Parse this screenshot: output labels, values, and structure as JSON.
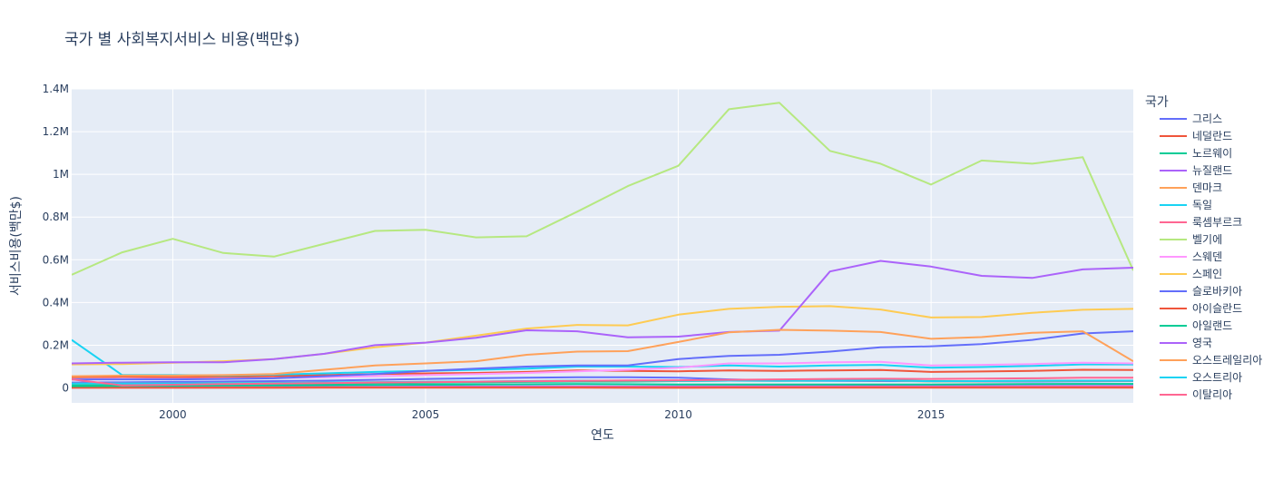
{
  "chart_data": {
    "type": "line",
    "title": "국가 별 사회복지서비스 비용(백만$)",
    "xlabel": "연도",
    "ylabel": "서비스비용(백만$)",
    "legend_title": "국가",
    "legend_position": "right",
    "xlim": [
      1998,
      2019
    ],
    "ylim": [
      -70000,
      1400000
    ],
    "x_ticks": [
      2000,
      2005,
      2010,
      2015
    ],
    "x_tick_labels": [
      "2000",
      "2005",
      "2010",
      "2015"
    ],
    "y_ticks": [
      0,
      200000,
      400000,
      600000,
      800000,
      1000000,
      1200000,
      1400000
    ],
    "y_tick_labels": [
      "0",
      "0.2M",
      "0.4M",
      "0.6M",
      "0.8M",
      "1M",
      "1.2M",
      "1.4M"
    ],
    "grid": true,
    "x": [
      1998,
      1999,
      2000,
      2001,
      2002,
      2003,
      2004,
      2005,
      2006,
      2007,
      2008,
      2009,
      2010,
      2011,
      2012,
      2013,
      2014,
      2015,
      2016,
      2017,
      2018,
      2019
    ],
    "series": [
      {
        "name": "그리스",
        "color": "#636efa",
        "values": [
          25000,
          26000,
          28000,
          30000,
          32000,
          34000,
          38000,
          42000,
          45000,
          48000,
          50000,
          50000,
          48000,
          40000,
          35000,
          33000,
          32000,
          31000,
          30000,
          30000,
          31000,
          32000
        ]
      },
      {
        "name": "네덜란드",
        "color": "#EF553B",
        "values": [
          50000,
          52000,
          50000,
          52000,
          55000,
          60000,
          65000,
          68000,
          70000,
          75000,
          82000,
          80000,
          78000,
          82000,
          80000,
          82000,
          84000,
          75000,
          77000,
          80000,
          85000,
          84000
        ]
      },
      {
        "name": "노르웨이",
        "color": "#00cc96",
        "values": [
          15000,
          16000,
          16000,
          17000,
          18000,
          20000,
          22000,
          24000,
          26000,
          28000,
          30000,
          30000,
          32000,
          34000,
          35000,
          36000,
          36000,
          32000,
          32000,
          33000,
          34000,
          34000
        ]
      },
      {
        "name": "뉴질랜드",
        "color": "#ab63fa",
        "values": [
          3000,
          3500,
          3800,
          4000,
          4500,
          5000,
          5500,
          6000,
          6500,
          7000,
          7000,
          6500,
          7000,
          7500,
          8000,
          8200,
          8500,
          8000,
          8000,
          8500,
          9000,
          9000
        ]
      },
      {
        "name": "덴마크",
        "color": "#FFA15A",
        "values": [
          20000,
          21000,
          21000,
          22000,
          23000,
          25000,
          27000,
          29000,
          30000,
          32000,
          34000,
          33000,
          33000,
          34000,
          33000,
          34000,
          35000,
          30000,
          31000,
          32000,
          33000,
          33000
        ]
      },
      {
        "name": "독일",
        "color": "#19d3f3",
        "values": [
          225000,
          60000,
          60000,
          58000,
          62000,
          68000,
          75000,
          80000,
          85000,
          90000,
          100000,
          100000,
          98000,
          105000,
          100000,
          105000,
          108000,
          95000,
          98000,
          103000,
          110000,
          110000
        ]
      },
      {
        "name": "룩셈부르크",
        "color": "#FF6692",
        "values": [
          2000,
          2200,
          2400,
          2600,
          2800,
          3000,
          3200,
          3500,
          3800,
          4000,
          4200,
          4300,
          4400,
          4600,
          4700,
          4800,
          5000,
          4800,
          4900,
          5100,
          5300,
          5400
        ]
      },
      {
        "name": "벨기에",
        "color": "#B6E880",
        "values": [
          530000,
          635000,
          698000,
          632000,
          615000,
          675000,
          735000,
          740000,
          705000,
          710000,
          825000,
          945000,
          1040000,
          1305000,
          1335000,
          1110000,
          1050000,
          952000,
          1065000,
          1050000,
          1080000,
          550000
        ]
      },
      {
        "name": "스웨덴",
        "color": "#FF97FF",
        "values": [
          40000,
          42000,
          42000,
          44000,
          46000,
          50000,
          55000,
          60000,
          65000,
          70000,
          78000,
          85000,
          95000,
          115000,
          115000,
          120000,
          122000,
          105000,
          108000,
          112000,
          118000,
          115000
        ]
      },
      {
        "name": "스페인",
        "color": "#FECB52",
        "values": [
          110000,
          112000,
          118000,
          125000,
          135000,
          160000,
          190000,
          212000,
          245000,
          278000,
          295000,
          293000,
          343000,
          370000,
          380000,
          383000,
          367000,
          330000,
          332000,
          352000,
          366000,
          370000
        ]
      },
      {
        "name": "슬로바키아",
        "color": "#636efa",
        "values": [
          40000,
          40000,
          40000,
          42000,
          45000,
          55000,
          65000,
          80000,
          90000,
          100000,
          105000,
          105000,
          135000,
          150000,
          155000,
          170000,
          190000,
          195000,
          205000,
          225000,
          255000,
          265000
        ]
      },
      {
        "name": "아이슬란드",
        "color": "#EF553B",
        "values": [
          500,
          550,
          600,
          650,
          700,
          750,
          800,
          850,
          900,
          950,
          900,
          700,
          700,
          750,
          800,
          850,
          900,
          850,
          900,
          950,
          1000,
          1000
        ]
      },
      {
        "name": "아일랜드",
        "color": "#00cc96",
        "values": [
          8000,
          9000,
          10000,
          11000,
          12000,
          13000,
          14000,
          15000,
          16000,
          17000,
          18000,
          17000,
          16000,
          16000,
          16000,
          16000,
          16000,
          16000,
          17000,
          18000,
          19000,
          19000
        ]
      },
      {
        "name": "영국",
        "color": "#ab63fa",
        "values": [
          115000,
          118000,
          120000,
          120000,
          135000,
          160000,
          200000,
          212000,
          235000,
          270000,
          265000,
          237000,
          240000,
          262000,
          268000,
          545000,
          595000,
          568000,
          525000,
          515000,
          555000,
          563000
        ]
      },
      {
        "name": "오스트레일리아",
        "color": "#FFA15A",
        "values": [
          55000,
          58000,
          58000,
          60000,
          65000,
          85000,
          105000,
          115000,
          125000,
          155000,
          170000,
          172000,
          215000,
          260000,
          272000,
          268000,
          262000,
          230000,
          238000,
          258000,
          265000,
          125000
        ]
      },
      {
        "name": "오스트리아",
        "color": "#19d3f3",
        "values": [
          20000,
          21000,
          21000,
          22000,
          23000,
          25000,
          27000,
          29000,
          30000,
          32000,
          34000,
          34000,
          33000,
          34000,
          33000,
          34000,
          35000,
          31000,
          32000,
          33000,
          34000,
          34000
        ]
      },
      {
        "name": "이탈리아",
        "color": "#FF6692",
        "values": [
          40000,
          12000,
          15000,
          18000,
          20000,
          22000,
          25000,
          27000,
          29000,
          31000,
          33000,
          35000,
          36000,
          38000,
          40000,
          42000,
          43000,
          42000,
          44000,
          45000,
          48000,
          48000
        ]
      }
    ]
  }
}
